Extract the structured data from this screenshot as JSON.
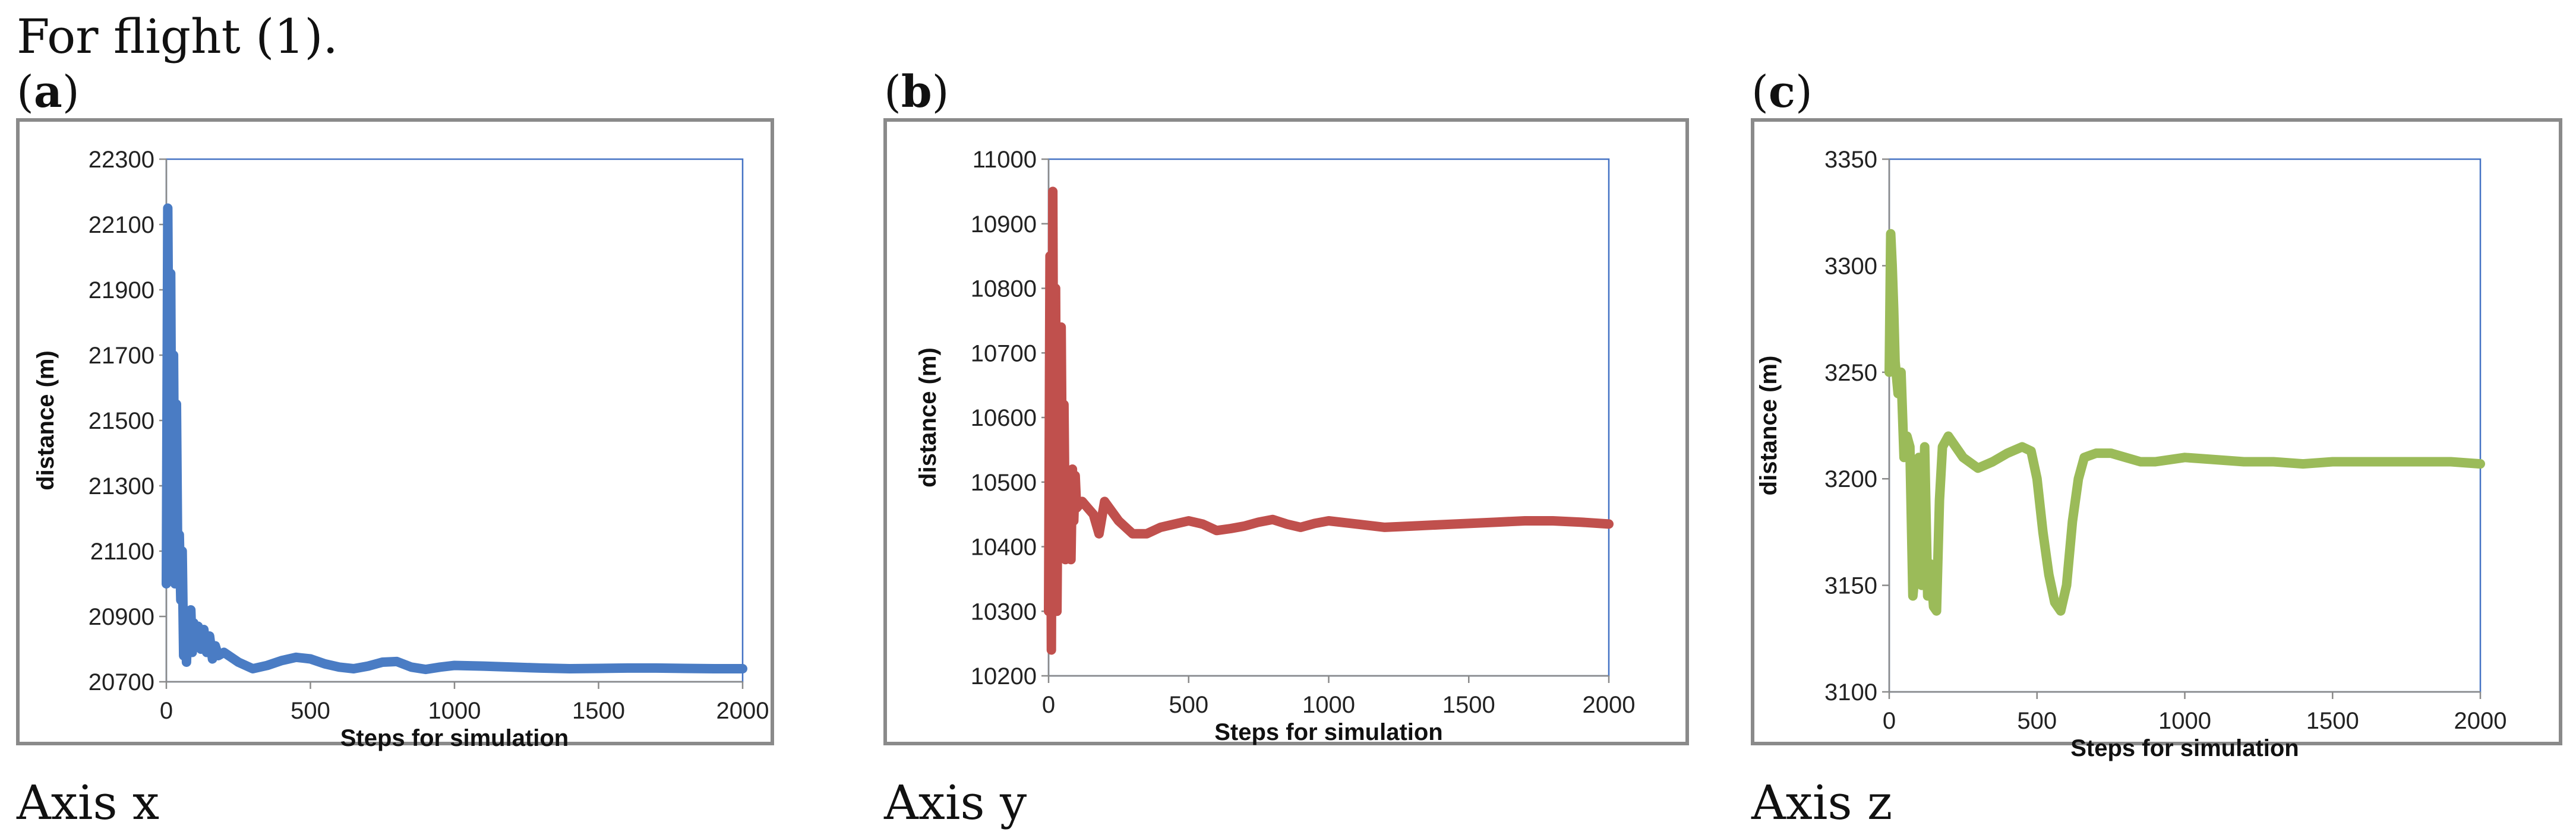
{
  "header": {
    "text": "For flight (1)."
  },
  "panels": [
    {
      "open": "(",
      "letter": "a",
      "close": ")",
      "caption": "Axis x"
    },
    {
      "open": "(",
      "letter": "b",
      "close": ")",
      "caption": "Axis y"
    },
    {
      "open": "(",
      "letter": "c",
      "close": ")",
      "caption": "Axis z"
    }
  ],
  "chart_data": [
    {
      "type": "line",
      "title": "",
      "xlabel": "Steps for simulation",
      "ylabel": "distance (m)",
      "xlim": [
        0,
        2000
      ],
      "ylim": [
        20700,
        22300
      ],
      "xticks": [
        0,
        500,
        1000,
        1500,
        2000
      ],
      "yticks": [
        20700,
        20900,
        21100,
        21300,
        21500,
        21700,
        21900,
        22100,
        22300
      ],
      "color": "#4a7cc4",
      "series": [
        {
          "name": "x",
          "x": [
            0,
            5,
            10,
            15,
            20,
            25,
            30,
            35,
            40,
            45,
            50,
            55,
            60,
            65,
            70,
            75,
            80,
            85,
            90,
            95,
            100,
            110,
            120,
            130,
            140,
            150,
            160,
            170,
            180,
            200,
            250,
            300,
            350,
            400,
            450,
            500,
            550,
            600,
            650,
            700,
            750,
            800,
            850,
            900,
            950,
            1000,
            1100,
            1200,
            1300,
            1400,
            1500,
            1600,
            1700,
            1800,
            1900,
            2000
          ],
          "y": [
            21000,
            22150,
            21400,
            21950,
            21100,
            21700,
            21000,
            21550,
            21020,
            21150,
            20950,
            21100,
            20780,
            20920,
            20760,
            20900,
            20800,
            20920,
            20790,
            20880,
            20810,
            20870,
            20800,
            20860,
            20790,
            20840,
            20770,
            20810,
            20780,
            20790,
            20760,
            20740,
            20750,
            20765,
            20775,
            20770,
            20755,
            20745,
            20740,
            20748,
            20760,
            20762,
            20745,
            20738,
            20745,
            20750,
            20748,
            20745,
            20742,
            20740,
            20741,
            20742,
            20742,
            20741,
            20740,
            20740
          ]
        }
      ]
    },
    {
      "type": "line",
      "title": "",
      "xlabel": "Steps for simulation",
      "ylabel": "distance (m)",
      "xlim": [
        0,
        2000
      ],
      "ylim": [
        10200,
        11000
      ],
      "xticks": [
        0,
        500,
        1000,
        1500,
        2000
      ],
      "yticks": [
        10200,
        10300,
        10400,
        10500,
        10600,
        10700,
        10800,
        10900,
        11000
      ],
      "color": "#c0504d",
      "series": [
        {
          "name": "y",
          "x": [
            0,
            5,
            10,
            15,
            20,
            25,
            30,
            35,
            40,
            45,
            50,
            55,
            60,
            65,
            70,
            75,
            80,
            85,
            90,
            95,
            100,
            120,
            140,
            160,
            180,
            200,
            250,
            300,
            350,
            400,
            450,
            500,
            550,
            600,
            650,
            700,
            750,
            800,
            850,
            900,
            950,
            1000,
            1100,
            1200,
            1300,
            1400,
            1500,
            1600,
            1700,
            1800,
            1900,
            2000
          ],
          "y": [
            10300,
            10850,
            10240,
            10950,
            10350,
            10800,
            10300,
            10600,
            10470,
            10740,
            10420,
            10620,
            10380,
            10500,
            10400,
            10460,
            10380,
            10520,
            10440,
            10510,
            10460,
            10470,
            10460,
            10450,
            10420,
            10470,
            10440,
            10420,
            10420,
            10430,
            10435,
            10440,
            10435,
            10425,
            10428,
            10432,
            10438,
            10442,
            10435,
            10430,
            10436,
            10440,
            10435,
            10430,
            10432,
            10434,
            10436,
            10438,
            10440,
            10440,
            10438,
            10435
          ]
        }
      ]
    },
    {
      "type": "line",
      "title": "",
      "xlabel": "Steps for simulation",
      "ylabel": "distance (m)",
      "xlim": [
        0,
        2000
      ],
      "ylim": [
        3100,
        3350
      ],
      "xticks": [
        0,
        500,
        1000,
        1500,
        2000
      ],
      "yticks": [
        3100,
        3150,
        3200,
        3250,
        3300,
        3350
      ],
      "color": "#9bbb59",
      "series": [
        {
          "name": "z",
          "x": [
            0,
            5,
            10,
            15,
            20,
            30,
            40,
            50,
            60,
            70,
            80,
            90,
            100,
            110,
            120,
            130,
            140,
            150,
            160,
            170,
            180,
            200,
            250,
            300,
            350,
            400,
            450,
            480,
            500,
            520,
            540,
            560,
            580,
            600,
            620,
            640,
            660,
            680,
            700,
            750,
            800,
            850,
            900,
            950,
            1000,
            1100,
            1200,
            1300,
            1400,
            1500,
            1600,
            1700,
            1800,
            1900,
            2000
          ],
          "y": [
            3250,
            3315,
            3300,
            3280,
            3255,
            3240,
            3250,
            3210,
            3220,
            3215,
            3145,
            3160,
            3210,
            3150,
            3215,
            3145,
            3160,
            3140,
            3138,
            3190,
            3215,
            3220,
            3210,
            3205,
            3208,
            3212,
            3215,
            3213,
            3200,
            3175,
            3155,
            3142,
            3138,
            3150,
            3180,
            3200,
            3210,
            3211,
            3212,
            3212,
            3210,
            3208,
            3208,
            3209,
            3210,
            3209,
            3208,
            3208,
            3207,
            3208,
            3208,
            3208,
            3208,
            3208,
            3207
          ]
        }
      ]
    }
  ]
}
